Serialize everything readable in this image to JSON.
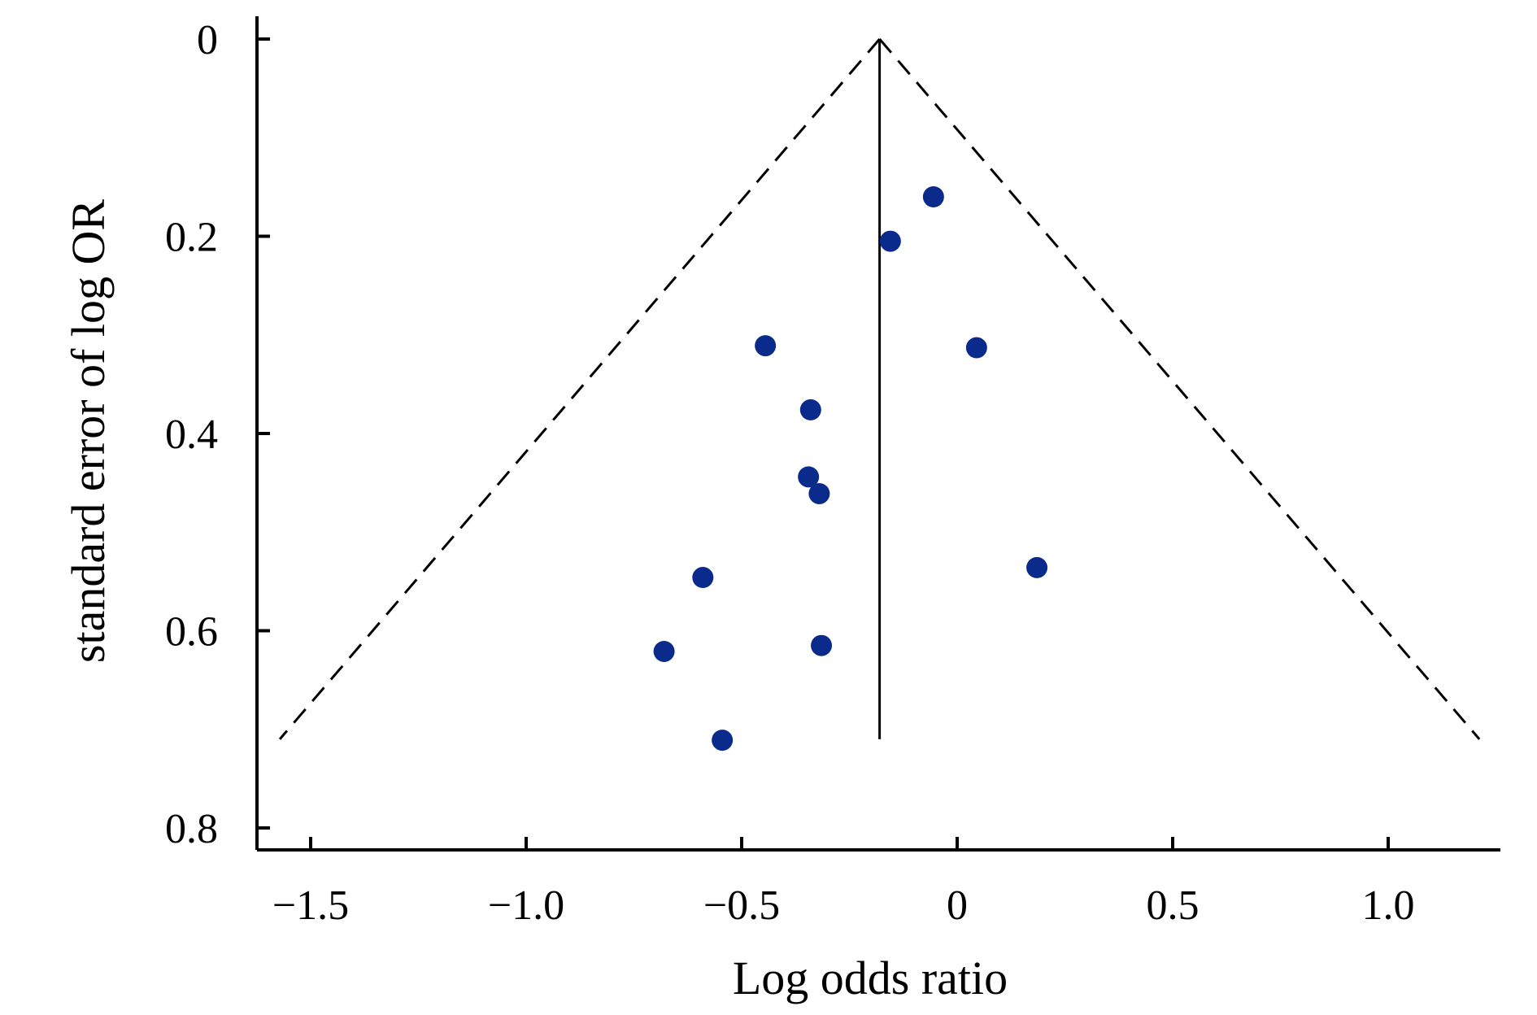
{
  "chart_data": {
    "type": "scatter",
    "subtype": "funnel-plot",
    "title": "",
    "xlabel": "Log odds ratio",
    "ylabel": "standard error of log OR",
    "xlim": [
      -1.62,
      1.26
    ],
    "ylim": [
      0,
      0.82
    ],
    "y_inverted": true,
    "x_ticks": [
      {
        "value": -1.5,
        "label": "−1.5"
      },
      {
        "value": -1.0,
        "label": "−1.0"
      },
      {
        "value": -0.5,
        "label": "−0.5"
      },
      {
        "value": 0,
        "label": "0"
      },
      {
        "value": 0.5,
        "label": "0.5"
      },
      {
        "value": 1.0,
        "label": "1.0"
      }
    ],
    "y_ticks": [
      {
        "value": 0,
        "label": "0"
      },
      {
        "value": 0.2,
        "label": "0.2"
      },
      {
        "value": 0.4,
        "label": "0.4"
      },
      {
        "value": 0.6,
        "label": "0.6"
      },
      {
        "value": 0.8,
        "label": "0.8"
      }
    ],
    "grid": false,
    "legend": "none",
    "pooled_estimate": -0.18,
    "funnel_se_max": 0.71,
    "funnel_z": 1.96,
    "point_color": "#0a2a8c",
    "points": [
      {
        "x": -0.055,
        "y": 0.16
      },
      {
        "x": -0.155,
        "y": 0.205
      },
      {
        "x": -0.445,
        "y": 0.311
      },
      {
        "x": 0.045,
        "y": 0.313
      },
      {
        "x": -0.34,
        "y": 0.376
      },
      {
        "x": -0.345,
        "y": 0.444
      },
      {
        "x": -0.32,
        "y": 0.461
      },
      {
        "x": -0.59,
        "y": 0.546
      },
      {
        "x": 0.185,
        "y": 0.536
      },
      {
        "x": -0.68,
        "y": 0.621
      },
      {
        "x": -0.315,
        "y": 0.615
      },
      {
        "x": -0.545,
        "y": 0.711
      }
    ]
  }
}
